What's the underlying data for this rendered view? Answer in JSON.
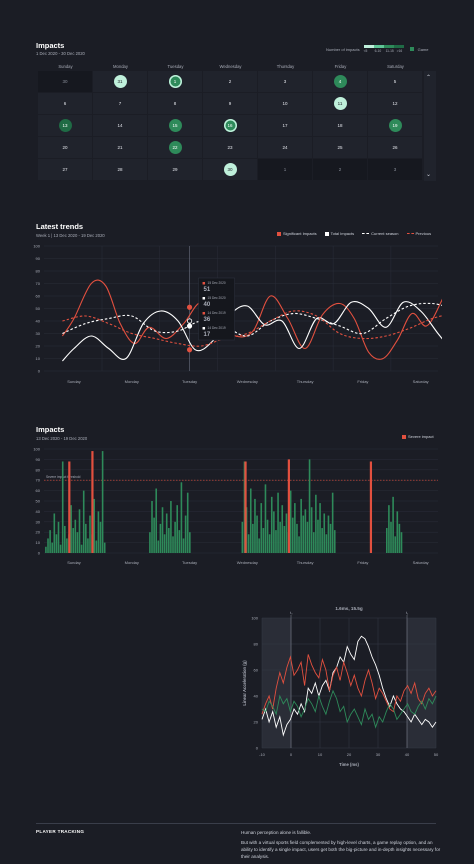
{
  "colors": {
    "bg": "#1b1d25",
    "panel": "#20232c",
    "dark_cell": "#16181f",
    "red": "#e2503f",
    "green": "#2e8a5a",
    "green_dark": "#1f6b45",
    "mint": "#bff0db",
    "white": "#ffffff"
  },
  "impacts_calendar": {
    "title": "Impacts",
    "date_range": "1 Dec 2020 - 30 Dec 2020",
    "legend_label": "Number of impacts",
    "legend_buckets": [
      "<5",
      "6-10",
      "11-15",
      ">16"
    ],
    "legend_game": "Game",
    "weekdays": [
      "Sunday",
      "Monday",
      "Tuesday",
      "Wednesday",
      "Thursday",
      "Friday",
      "Saturday"
    ],
    "rows": [
      [
        {
          "d": "30",
          "mark": "none",
          "dim": true
        },
        {
          "d": "31",
          "mark": "mint"
        },
        {
          "d": "1",
          "mark": "green_ring"
        },
        {
          "d": "2",
          "mark": "none"
        },
        {
          "d": "3",
          "mark": "none"
        },
        {
          "d": "4",
          "mark": "green"
        },
        {
          "d": "5",
          "mark": "none"
        }
      ],
      [
        {
          "d": "6",
          "mark": "none"
        },
        {
          "d": "7",
          "mark": "none"
        },
        {
          "d": "8",
          "mark": "none"
        },
        {
          "d": "9",
          "mark": "none"
        },
        {
          "d": "10",
          "mark": "none"
        },
        {
          "d": "11",
          "mark": "mint"
        },
        {
          "d": "12",
          "mark": "none"
        }
      ],
      [
        {
          "d": "13",
          "mark": "dark_green"
        },
        {
          "d": "14",
          "mark": "none"
        },
        {
          "d": "15",
          "mark": "green"
        },
        {
          "d": "16",
          "mark": "green_ring"
        },
        {
          "d": "17",
          "mark": "none"
        },
        {
          "d": "18",
          "mark": "none"
        },
        {
          "d": "19",
          "mark": "green"
        }
      ],
      [
        {
          "d": "20",
          "mark": "none"
        },
        {
          "d": "21",
          "mark": "none"
        },
        {
          "d": "22",
          "mark": "green"
        },
        {
          "d": "23",
          "mark": "none"
        },
        {
          "d": "24",
          "mark": "none"
        },
        {
          "d": "25",
          "mark": "none"
        },
        {
          "d": "26",
          "mark": "none"
        }
      ],
      [
        {
          "d": "27",
          "mark": "none"
        },
        {
          "d": "28",
          "mark": "none"
        },
        {
          "d": "29",
          "mark": "none"
        },
        {
          "d": "30",
          "mark": "mint"
        },
        {
          "d": "1",
          "mark": "none",
          "dim": true
        },
        {
          "d": "2",
          "mark": "none",
          "dim": true
        },
        {
          "d": "3",
          "mark": "none",
          "dim": true
        }
      ]
    ],
    "scroll_up_icon": "chevron-up-icon",
    "scroll_down_icon": "chevron-down-icon"
  },
  "chart_data": [
    {
      "type": "line",
      "title": "Latest trends",
      "subtitle": "Week 1 | 13 Dec 2020 - 19 Dec 2020",
      "categories": [
        "Sunday",
        "Monday",
        "Tuesday",
        "Wednesday",
        "Thursday",
        "Friday",
        "Saturday"
      ],
      "ylim": [
        0,
        100
      ],
      "yticks": [
        0,
        10,
        20,
        30,
        40,
        50,
        60,
        70,
        80,
        90,
        100
      ],
      "grid": true,
      "legend_position": "top-right",
      "series": [
        {
          "name": "Significant Impacts",
          "color": "#e2503f",
          "dash": false,
          "x": [
            -0.2,
            0.0,
            0.3,
            0.55,
            0.8,
            1.05,
            1.3,
            1.6,
            1.9,
            2.2,
            2.5,
            2.8,
            3.1,
            3.4,
            3.7,
            4.0,
            4.3,
            4.6,
            4.85,
            5.1,
            5.35,
            5.6,
            5.85,
            6.1,
            6.35,
            6.55
          ],
          "values": [
            28,
            42,
            70,
            68,
            38,
            22,
            35,
            26,
            38,
            55,
            40,
            28,
            32,
            60,
            42,
            18,
            45,
            54,
            42,
            15,
            10,
            25,
            46,
            36,
            55,
            78
          ]
        },
        {
          "name": "Total Impacts",
          "color": "#ffffff",
          "dash": false,
          "x": [
            -0.2,
            0.0,
            0.3,
            0.6,
            0.9,
            1.2,
            1.5,
            1.8,
            2.1,
            2.4,
            2.7,
            3.0,
            3.3,
            3.6,
            3.9,
            4.2,
            4.5,
            4.8,
            5.1,
            5.4,
            5.7,
            6.0,
            6.3,
            6.55
          ],
          "values": [
            8,
            18,
            28,
            18,
            10,
            38,
            48,
            40,
            17,
            24,
            45,
            52,
            37,
            40,
            18,
            42,
            38,
            55,
            50,
            35,
            55,
            48,
            30,
            16
          ]
        },
        {
          "name": "Current season",
          "color": "#ffffff",
          "dash": true,
          "x": [
            -0.2,
            0.2,
            0.6,
            1.0,
            1.4,
            1.8,
            2.2,
            2.6,
            3.0,
            3.4,
            3.8,
            4.2,
            4.6,
            5.0,
            5.4,
            5.8,
            6.2,
            6.55
          ],
          "values": [
            30,
            38,
            42,
            44,
            32,
            32,
            40,
            36,
            28,
            40,
            46,
            42,
            36,
            30,
            42,
            52,
            54,
            50
          ]
        },
        {
          "name": "Previous",
          "color": "#e2503f",
          "dash": true,
          "x": [
            -0.2,
            0.2,
            0.6,
            1.0,
            1.4,
            1.8,
            2.2,
            2.6,
            3.0,
            3.4,
            3.8,
            4.2,
            4.6,
            5.0,
            5.4,
            5.8,
            6.2,
            6.55
          ],
          "values": [
            40,
            44,
            38,
            30,
            26,
            22,
            20,
            26,
            30,
            40,
            48,
            44,
            30,
            26,
            28,
            34,
            42,
            46
          ]
        }
      ],
      "hover_x": 2.0,
      "tooltip": [
        {
          "date": "15 Dec 2020",
          "value": "51",
          "color": "#e2503f"
        },
        {
          "date": "15 Dec 2020",
          "value": "40",
          "color": "#ffffff"
        },
        {
          "date": "14 Dec 2019",
          "value": "36",
          "color": "#e2503f"
        },
        {
          "date": "14 Dec 2019",
          "value": "17",
          "color": "#ffffff"
        }
      ]
    },
    {
      "type": "bar",
      "title": "Impacts",
      "subtitle": "13 Dec 2020 - 19 Dec 2020",
      "legend": "Severe impact",
      "categories": [
        "Sunday",
        "Monday",
        "Tuesday",
        "Wednesday",
        "Thursday",
        "Friday",
        "Saturday"
      ],
      "ylim": [
        0,
        100
      ],
      "yticks": [
        0,
        10,
        20,
        30,
        40,
        50,
        60,
        70,
        80,
        90,
        100
      ],
      "threshold": {
        "label": "Severe impact threshold",
        "value": 70
      },
      "groups": [
        {
          "start": 0.0,
          "values": [
            6,
            14,
            22,
            10,
            38,
            18,
            30,
            8,
            88,
            26,
            14,
            18,
            46,
            24,
            32,
            20,
            42,
            8,
            60,
            28,
            14,
            36,
            18,
            52,
            12,
            40,
            30,
            98,
            10
          ]
        },
        {
          "start": 1.8,
          "values": [
            20,
            50,
            34,
            62,
            12,
            28,
            44,
            18,
            38,
            24,
            50,
            16,
            30,
            46,
            22,
            68,
            14,
            36,
            58,
            20
          ]
        },
        {
          "start": 3.4,
          "values": [
            30,
            88,
            44,
            18,
            62,
            28,
            52,
            36,
            14,
            48,
            24,
            66,
            32,
            18,
            54,
            40,
            22,
            58,
            30,
            46,
            26,
            38,
            20,
            60,
            34,
            48,
            28,
            16,
            52,
            36,
            42,
            30,
            90,
            44,
            20,
            56,
            32,
            48,
            24,
            38,
            18,
            36,
            28,
            58,
            22
          ]
        },
        {
          "start": 5.9,
          "values": [
            24,
            46,
            30,
            54,
            16,
            40,
            28,
            20
          ]
        }
      ],
      "severe": [
        {
          "x": 0.4,
          "v": 88
        },
        {
          "x": 0.8,
          "v": 98
        },
        {
          "x": 3.45,
          "v": 88
        },
        {
          "x": 4.2,
          "v": 90
        },
        {
          "x": 5.62,
          "v": 88
        }
      ]
    },
    {
      "type": "line",
      "title": "1.6ms, 15.5g",
      "xlabel": "Time (ms)",
      "ylabel": "Linear Acceleration (g)",
      "xlim": [
        -10,
        50
      ],
      "ylim": [
        0,
        100
      ],
      "xticks": [
        -10,
        0,
        10,
        20,
        30,
        40,
        50
      ],
      "yticks": [
        0,
        20,
        40,
        60,
        80,
        100
      ],
      "markers": [
        {
          "x": 0,
          "label": "t₀"
        },
        {
          "x": 40,
          "label": "t₁"
        }
      ],
      "series": [
        {
          "name": "",
          "color": "#ffffff",
          "values": [
            22,
            30,
            20,
            28,
            16,
            24,
            10,
            18,
            22,
            30,
            26,
            34,
            28,
            46,
            42,
            50,
            40,
            48,
            52,
            44,
            58,
            62,
            70,
            66,
            78,
            72,
            68,
            82,
            86,
            84,
            78,
            70,
            64,
            56,
            46,
            38,
            32,
            40,
            34,
            30,
            28,
            24,
            20,
            26,
            22,
            18,
            22,
            20,
            16,
            20
          ]
        },
        {
          "name": "",
          "color": "#e2503f",
          "values": [
            26,
            34,
            40,
            30,
            46,
            58,
            50,
            62,
            70,
            56,
            60,
            66,
            48,
            72,
            64,
            58,
            54,
            68,
            60,
            44,
            56,
            62,
            52,
            66,
            58,
            48,
            56,
            46,
            40,
            52,
            60,
            50,
            38,
            46,
            42,
            36,
            30,
            28,
            40,
            36,
            44,
            48,
            42,
            50,
            38,
            34,
            42,
            46,
            40,
            44
          ]
        },
        {
          "name": "",
          "color": "#2e8a5a",
          "values": [
            30,
            28,
            36,
            32,
            26,
            40,
            34,
            38,
            28,
            36,
            32,
            24,
            30,
            38,
            34,
            28,
            40,
            32,
            26,
            36,
            44,
            38,
            28,
            32,
            20,
            26,
            30,
            24,
            18,
            30,
            22,
            26,
            16,
            24,
            20,
            28,
            34,
            30,
            22,
            26,
            30,
            34,
            28,
            26,
            32,
            36,
            30,
            38,
            34,
            40
          ]
        }
      ]
    }
  ],
  "footer": {
    "heading": "PLAYER TRACKING",
    "line1": "Human perception alone is fallible.",
    "line2": "But with a virtual sports field complemented by high-level charts, a game replay option, and an ability to identify a single impact, users get both the big-picture and in-depth insights necessary for their analysis."
  }
}
